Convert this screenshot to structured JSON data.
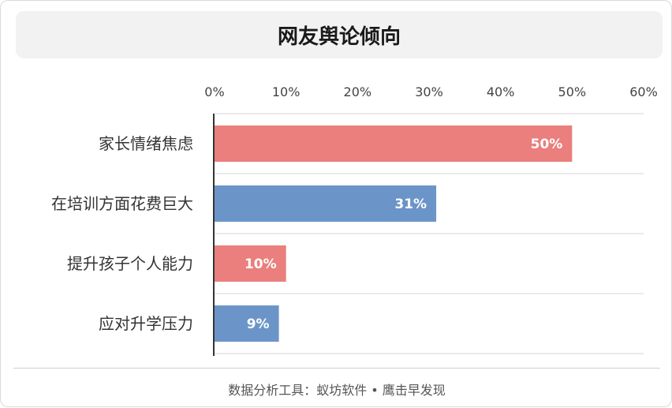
{
  "title": "网友舆论倾向",
  "footer": "数据分析工具：蚁坊软件 • 鹰击早发现",
  "colors": {
    "pink": "#ea7f7d",
    "blue": "#6b95c8",
    "axis": "#333333",
    "grid": "#d6d6d6",
    "label": "#333333",
    "tick": "#444444"
  },
  "chart_data": {
    "type": "bar",
    "orientation": "horizontal",
    "title": "网友舆论倾向",
    "categories": [
      "家长情绪焦虑",
      "在培训方面花费巨大",
      "提升孩子个人能力",
      "应对升学压力"
    ],
    "values": [
      50,
      31,
      10,
      9
    ],
    "data_labels": [
      "50%",
      "31%",
      "10%",
      "9%"
    ],
    "bar_colors": [
      "#ea7f7d",
      "#6b95c8",
      "#ea7f7d",
      "#6b95c8"
    ],
    "xlim": [
      0,
      60
    ],
    "xticks": [
      0,
      10,
      20,
      30,
      40,
      50,
      60
    ],
    "xtick_labels": [
      "0%",
      "10%",
      "20%",
      "30%",
      "40%",
      "50%",
      "60%"
    ],
    "x_axis_position": "top",
    "grid": true,
    "legend": "none"
  }
}
